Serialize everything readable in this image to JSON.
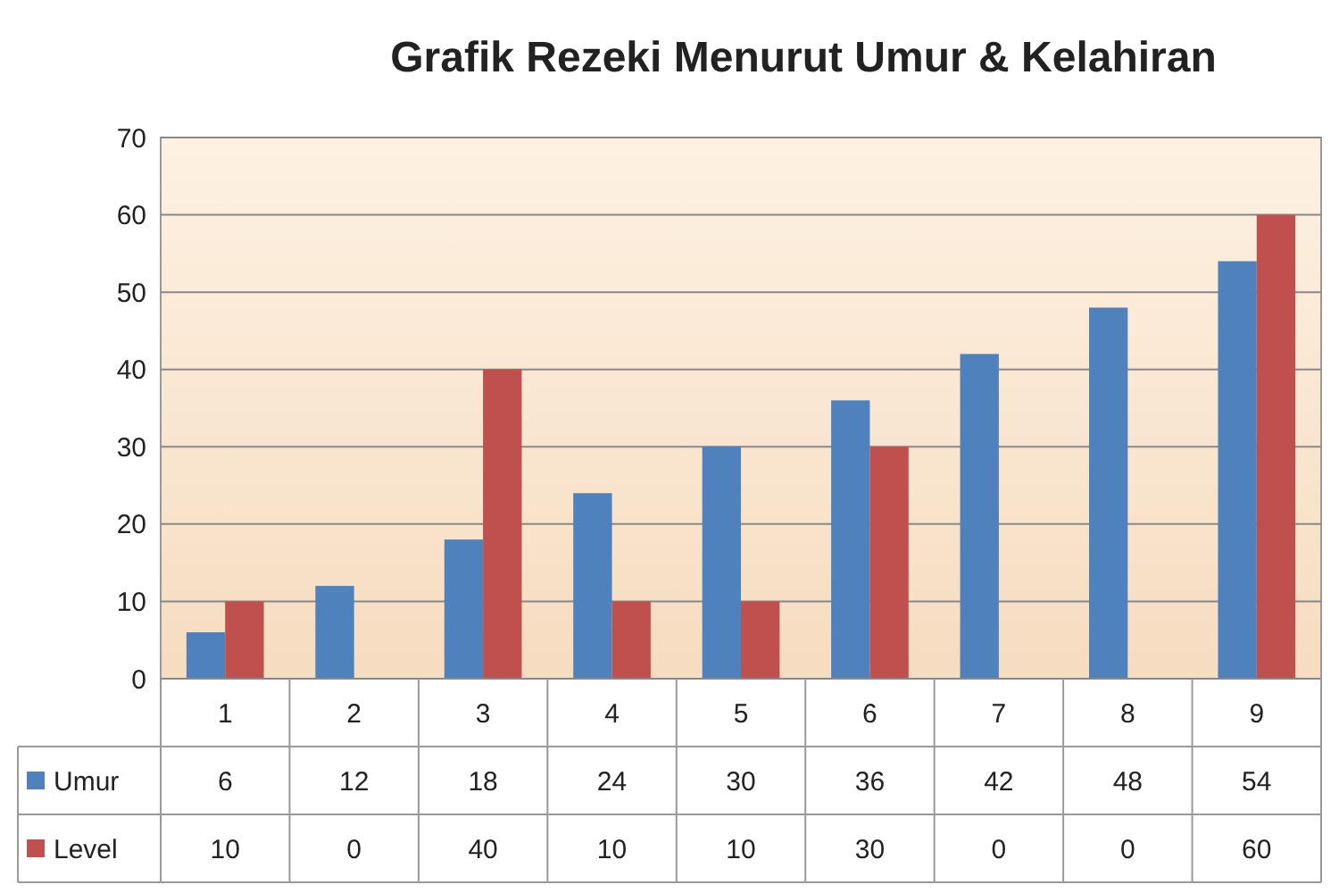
{
  "chart_data": {
    "type": "bar",
    "title": "Grafik Rezeki Menurut Umur & Kelahiran",
    "categories": [
      "1",
      "2",
      "3",
      "4",
      "5",
      "6",
      "7",
      "8",
      "9"
    ],
    "series": [
      {
        "name": "Umur",
        "color": "#4f81bd",
        "values": [
          6,
          12,
          18,
          24,
          30,
          36,
          42,
          48,
          54
        ]
      },
      {
        "name": "Level",
        "color": "#c0504d",
        "values": [
          10,
          0,
          40,
          10,
          10,
          30,
          0,
          0,
          60
        ]
      }
    ],
    "ylim": [
      0,
      70
    ],
    "yticks": [
      0,
      10,
      20,
      30,
      40,
      50,
      60,
      70
    ],
    "grid": "y",
    "data_labels": true,
    "legend": "bottom"
  }
}
